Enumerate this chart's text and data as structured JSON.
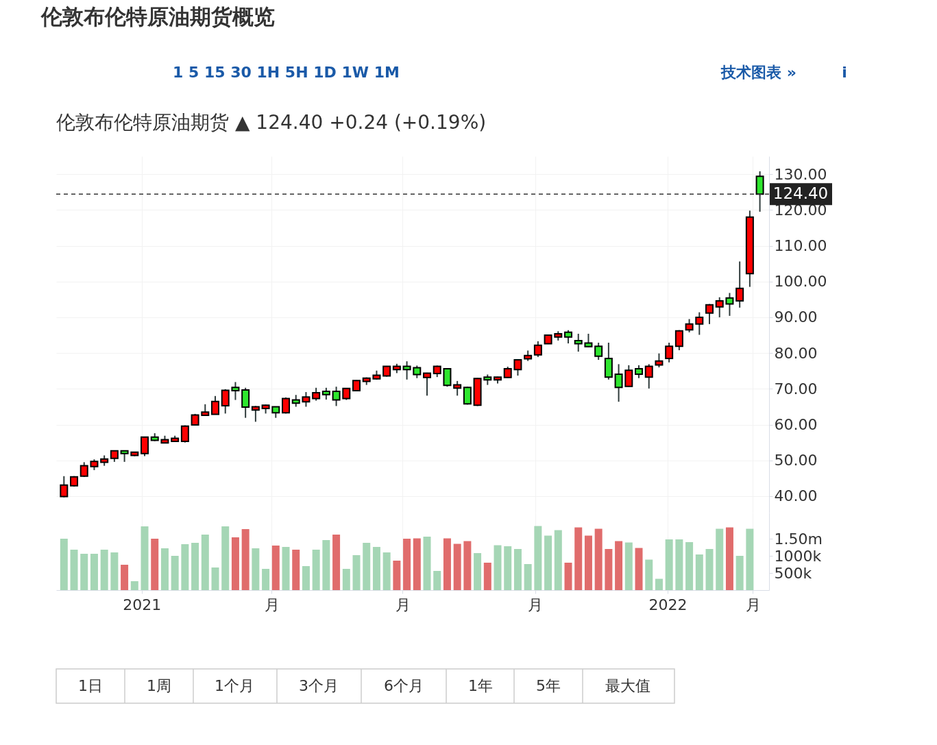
{
  "chart_data": [
    {
      "type": "candlestick",
      "title": "伦敦布伦特原油期货概览",
      "subtitle": "伦敦布伦特原油期货 ▲ 124.40 +0.24 (+0.19%)",
      "annotations": [
        "1 5 15 30 1H 5H 1D 1W 1M",
        "技术图表 »",
        "i"
      ],
      "x": [
        "2020-11-08",
        "2020-11-15",
        "2020-11-22",
        "2020-11-29",
        "2020-12-06",
        "2020-12-13",
        "2020-12-20",
        "2020-12-27",
        "2021-01-03",
        "2021-01-10",
        "2021-01-17",
        "2021-01-24",
        "2021-01-31",
        "2021-02-07",
        "2021-02-14",
        "2021-02-21",
        "2021-02-28",
        "2021-03-07",
        "2021-03-14",
        "2021-03-21",
        "2021-03-28",
        "2021-04-04",
        "2021-04-11",
        "2021-04-18",
        "2021-04-25",
        "2021-05-02",
        "2021-05-09",
        "2021-05-16",
        "2021-05-23",
        "2021-05-30",
        "2021-06-06",
        "2021-06-13",
        "2021-06-20",
        "2021-06-27",
        "2021-07-04",
        "2021-07-11",
        "2021-07-18",
        "2021-07-25",
        "2021-08-01",
        "2021-08-08",
        "2021-08-15",
        "2021-08-22",
        "2021-08-29",
        "2021-09-05",
        "2021-09-12",
        "2021-09-19",
        "2021-09-26",
        "2021-10-03",
        "2021-10-10",
        "2021-10-17",
        "2021-10-24",
        "2021-10-31",
        "2021-11-07",
        "2021-11-14",
        "2021-11-21",
        "2021-11-28",
        "2021-12-05",
        "2021-12-12",
        "2021-12-19",
        "2021-12-26",
        "2022-01-02",
        "2022-01-09",
        "2022-01-16",
        "2022-01-23",
        "2022-01-30",
        "2022-02-06",
        "2022-02-13",
        "2022-02-20",
        "2022-02-27",
        "2022-03-06"
      ],
      "ohlc": [
        [
          39.9,
          45.6,
          39.7,
          43.1
        ],
        [
          42.9,
          45.6,
          42.7,
          45.4
        ],
        [
          45.6,
          49.5,
          45.4,
          48.5
        ],
        [
          48.3,
          50.3,
          47.3,
          49.7
        ],
        [
          49.5,
          51.4,
          48.5,
          50.4
        ],
        [
          50.6,
          52.7,
          49.6,
          52.7
        ],
        [
          52.7,
          52.7,
          49.6,
          51.9
        ],
        [
          51.4,
          52.3,
          51.2,
          52.3
        ],
        [
          51.9,
          56.5,
          51.2,
          56.5
        ],
        [
          56.5,
          57.6,
          55.4,
          55.6
        ],
        [
          54.9,
          56.9,
          54.8,
          55.8
        ],
        [
          55.3,
          56.9,
          55.2,
          56.2
        ],
        [
          55.3,
          59.8,
          55.0,
          59.6
        ],
        [
          59.9,
          63.0,
          59.9,
          62.7
        ],
        [
          62.6,
          65.7,
          62.5,
          63.5
        ],
        [
          62.9,
          68.0,
          62.9,
          66.5
        ],
        [
          65.3,
          69.9,
          63.1,
          69.6
        ],
        [
          70.4,
          71.9,
          66.9,
          69.5
        ],
        [
          69.7,
          70.3,
          61.9,
          64.9
        ],
        [
          64.1,
          65.2,
          60.8,
          65.0
        ],
        [
          64.5,
          65.6,
          63.1,
          65.4
        ],
        [
          65.0,
          65.0,
          61.9,
          63.3
        ],
        [
          63.3,
          67.6,
          63.1,
          67.3
        ],
        [
          66.9,
          68.3,
          65.0,
          66.0
        ],
        [
          66.4,
          69.1,
          65.0,
          67.7
        ],
        [
          67.3,
          70.3,
          66.7,
          68.9
        ],
        [
          69.3,
          70.3,
          67.0,
          68.4
        ],
        [
          69.3,
          70.6,
          65.2,
          66.9
        ],
        [
          67.3,
          70.2,
          66.9,
          70.1
        ],
        [
          69.5,
          72.4,
          69.3,
          72.3
        ],
        [
          72.1,
          73.2,
          71.1,
          73.0
        ],
        [
          72.8,
          75.1,
          72.6,
          73.8
        ],
        [
          73.6,
          76.4,
          73.4,
          76.3
        ],
        [
          75.4,
          77.0,
          74.4,
          76.3
        ],
        [
          76.3,
          77.7,
          72.6,
          75.4
        ],
        [
          75.9,
          76.5,
          73.0,
          74.0
        ],
        [
          73.2,
          74.5,
          68.1,
          74.4
        ],
        [
          74.3,
          76.5,
          73.3,
          76.3
        ],
        [
          75.6,
          75.7,
          70.6,
          71.0
        ],
        [
          70.2,
          72.2,
          68.1,
          71.1
        ],
        [
          70.4,
          70.6,
          65.6,
          65.8
        ],
        [
          65.4,
          73.0,
          65.2,
          72.9
        ],
        [
          73.3,
          74.0,
          71.1,
          72.5
        ],
        [
          72.5,
          73.4,
          71.5,
          73.3
        ],
        [
          73.2,
          76.2,
          73.1,
          75.6
        ],
        [
          75.4,
          78.2,
          73.7,
          78.1
        ],
        [
          78.4,
          80.7,
          77.8,
          79.3
        ],
        [
          79.5,
          83.3,
          78.9,
          82.2
        ],
        [
          82.6,
          85.1,
          82.5,
          85.0
        ],
        [
          84.5,
          86.1,
          83.5,
          85.4
        ],
        [
          85.8,
          86.4,
          82.7,
          84.5
        ],
        [
          83.5,
          85.4,
          80.4,
          82.6
        ],
        [
          82.8,
          85.4,
          81.7,
          81.8
        ],
        [
          81.9,
          82.9,
          78.1,
          79.1
        ],
        [
          78.5,
          82.9,
          72.6,
          73.3
        ],
        [
          74.1,
          76.9,
          66.4,
          70.4
        ],
        [
          70.7,
          76.6,
          70.6,
          75.2
        ],
        [
          75.6,
          76.6,
          73.0,
          74.1
        ],
        [
          73.3,
          76.9,
          70.1,
          76.3
        ],
        [
          76.7,
          79.9,
          76.0,
          77.8
        ],
        [
          78.5,
          82.9,
          77.4,
          81.9
        ],
        [
          81.9,
          86.4,
          80.8,
          86.2
        ],
        [
          86.5,
          89.5,
          85.8,
          88.1
        ],
        [
          88.1,
          91.4,
          85.1,
          90.0
        ],
        [
          91.2,
          93.7,
          88.1,
          93.5
        ],
        [
          92.9,
          95.6,
          90.0,
          94.6
        ],
        [
          95.4,
          96.8,
          90.4,
          93.7
        ],
        [
          94.6,
          105.6,
          92.7,
          98.1
        ],
        [
          102.2,
          119.8,
          98.5,
          118.0
        ],
        [
          129.4,
          130.8,
          119.5,
          124.4
        ]
      ],
      "colors": [
        "#ff0000",
        "#ff0000",
        "#ff0000",
        "#ff0000",
        "#ff0000",
        "#ff0000",
        "#2ee62e",
        "#ff0000",
        "#ff0000",
        "#2ee62e",
        "#ff0000",
        "#ff0000",
        "#ff0000",
        "#ff0000",
        "#ff0000",
        "#ff0000",
        "#ff0000",
        "#2ee62e",
        "#2ee62e",
        "#ff0000",
        "#ff0000",
        "#2ee62e",
        "#ff0000",
        "#2ee62e",
        "#ff0000",
        "#ff0000",
        "#2ee62e",
        "#2ee62e",
        "#ff0000",
        "#ff0000",
        "#ff0000",
        "#ff0000",
        "#ff0000",
        "#ff0000",
        "#2ee62e",
        "#2ee62e",
        "#ff0000",
        "#ff0000",
        "#2ee62e",
        "#ff0000",
        "#2ee62e",
        "#ff0000",
        "#2ee62e",
        "#ff0000",
        "#ff0000",
        "#ff0000",
        "#ff0000",
        "#ff0000",
        "#ff0000",
        "#ff0000",
        "#2ee62e",
        "#2ee62e",
        "#2ee62e",
        "#2ee62e",
        "#2ee62e",
        "#2ee62e",
        "#ff0000",
        "#2ee62e",
        "#ff0000",
        "#ff0000",
        "#ff0000",
        "#ff0000",
        "#ff0000",
        "#ff0000",
        "#ff0000",
        "#ff0000",
        "#2ee62e",
        "#ff0000",
        "#ff0000",
        "#2ee62e"
      ],
      "xlim": [
        "2020-11-05",
        "2022-03-10"
      ],
      "xticks": [
        {
          "value": "2021-01-01",
          "label": null
        },
        {
          "value": "2021-04-01",
          "label": null
        },
        {
          "value": "2021-07-01",
          "label": null
        },
        {
          "value": "2021-10-01",
          "label": null
        },
        {
          "value": "2022-01-01",
          "label": null
        },
        {
          "value": "2022-03-01",
          "label": null
        }
      ],
      "ylim": [
        35.4,
        135
      ],
      "yticks": [
        {
          "value": 40,
          "label": "40.00"
        },
        {
          "value": 50,
          "label": "50.00"
        },
        {
          "value": 60,
          "label": "60.00"
        },
        {
          "value": 70,
          "label": "70.00"
        },
        {
          "value": 80,
          "label": "80.00"
        },
        {
          "value": 90,
          "label": "90.00"
        },
        {
          "value": 100,
          "label": "100.00"
        },
        {
          "value": 110,
          "label": "110.00"
        },
        {
          "value": 120,
          "label": "120.00"
        },
        {
          "value": 130,
          "label": "130.00"
        }
      ],
      "ref_lines": [
        {
          "axis": "y",
          "value": 124.4,
          "label": "124.40",
          "color": "#333333",
          "line_style": "dashed"
        }
      ],
      "grid": true,
      "tick_labels": "y"
    },
    {
      "type": "bar",
      "annotations": [
        "1日",
        "1周",
        "1个月",
        "3个月",
        "6个月",
        "1年",
        "5年",
        "最大值"
      ],
      "x": [
        "2020-11-08",
        "2020-11-15",
        "2020-11-22",
        "2020-11-29",
        "2020-12-06",
        "2020-12-13",
        "2020-12-20",
        "2020-12-27",
        "2021-01-03",
        "2021-01-10",
        "2021-01-17",
        "2021-01-24",
        "2021-01-31",
        "2021-02-07",
        "2021-02-14",
        "2021-02-21",
        "2021-02-28",
        "2021-03-07",
        "2021-03-14",
        "2021-03-21",
        "2021-03-28",
        "2021-04-04",
        "2021-04-11",
        "2021-04-18",
        "2021-04-25",
        "2021-05-02",
        "2021-05-09",
        "2021-05-16",
        "2021-05-23",
        "2021-05-30",
        "2021-06-06",
        "2021-06-13",
        "2021-06-20",
        "2021-06-27",
        "2021-07-04",
        "2021-07-11",
        "2021-07-18",
        "2021-07-25",
        "2021-08-01",
        "2021-08-08",
        "2021-08-15",
        "2021-08-22",
        "2021-08-29",
        "2021-09-05",
        "2021-09-12",
        "2021-09-19",
        "2021-09-26",
        "2021-10-03",
        "2021-10-10",
        "2021-10-17",
        "2021-10-24",
        "2021-10-31",
        "2021-11-07",
        "2021-11-14",
        "2021-11-21",
        "2021-11-28",
        "2021-12-05",
        "2021-12-12",
        "2021-12-19",
        "2021-12-26",
        "2022-01-02",
        "2022-01-09",
        "2022-01-16",
        "2022-01-23",
        "2022-01-30",
        "2022-02-06",
        "2022-02-13",
        "2022-02-20",
        "2022-02-27"
      ],
      "values": [
        1500000,
        1180000,
        1060000,
        1060000,
        1180000,
        1100000,
        740000,
        260000,
        1860000,
        1500000,
        1220000,
        1000000,
        1340000,
        1380000,
        1620000,
        660000,
        1860000,
        1540000,
        1780000,
        1220000,
        620000,
        1300000,
        1260000,
        1180000,
        700000,
        1180000,
        1460000,
        1620000,
        620000,
        1020000,
        1380000,
        1260000,
        1100000,
        860000,
        1500000,
        1510000,
        1560000,
        560000,
        1510000,
        1350000,
        1430000,
        1080000,
        800000,
        1310000,
        1280000,
        1200000,
        760000,
        1870000,
        1590000,
        1750000,
        800000,
        1830000,
        1590000,
        1790000,
        1200000,
        1430000,
        1390000,
        1230000,
        890000,
        330000,
        1480000,
        1480000,
        1400000,
        1040000,
        1200000,
        1790000,
        1830000,
        1000000,
        1790000
      ],
      "colors": [
        "#a5d6b5",
        "#a5d6b5",
        "#a5d6b5",
        "#a5d6b5",
        "#a5d6b5",
        "#a5d6b5",
        "#e06c6c",
        "#a5d6b5",
        "#a5d6b5",
        "#e06c6c",
        "#a5d6b5",
        "#a5d6b5",
        "#a5d6b5",
        "#a5d6b5",
        "#a5d6b5",
        "#a5d6b5",
        "#a5d6b5",
        "#e06c6c",
        "#e06c6c",
        "#a5d6b5",
        "#a5d6b5",
        "#e06c6c",
        "#a5d6b5",
        "#e06c6c",
        "#a5d6b5",
        "#a5d6b5",
        "#a5d6b5",
        "#e06c6c",
        "#a5d6b5",
        "#a5d6b5",
        "#a5d6b5",
        "#a5d6b5",
        "#a5d6b5",
        "#e06c6c",
        "#e06c6c",
        "#e06c6c",
        "#a5d6b5",
        "#a5d6b5",
        "#e06c6c",
        "#e06c6c",
        "#e06c6c",
        "#a5d6b5",
        "#e06c6c",
        "#a5d6b5",
        "#a5d6b5",
        "#a5d6b5",
        "#a5d6b5",
        "#a5d6b5",
        "#a5d6b5",
        "#a5d6b5",
        "#e06c6c",
        "#e06c6c",
        "#e06c6c",
        "#e06c6c",
        "#e06c6c",
        "#e06c6c",
        "#a5d6b5",
        "#e06c6c",
        "#a5d6b5",
        "#a5d6b5",
        "#a5d6b5",
        "#a5d6b5",
        "#a5d6b5",
        "#a5d6b5",
        "#a5d6b5",
        "#a5d6b5",
        "#e06c6c",
        "#a5d6b5",
        "#a5d6b5"
      ],
      "xlim": [
        "2020-11-05",
        "2022-03-10"
      ],
      "xticks": [
        {
          "value": "2021-01-01",
          "label": "2021"
        },
        {
          "value": "2021-04-01",
          "label": "月"
        },
        {
          "value": "2021-07-01",
          "label": "月"
        },
        {
          "value": "2021-10-01",
          "label": "月"
        },
        {
          "value": "2022-01-01",
          "label": "2022"
        },
        {
          "value": "2022-03-01",
          "label": "月"
        }
      ],
      "ylim": [
        0,
        2260000
      ],
      "yticks": [
        {
          "value": 500000,
          "label": "500k"
        },
        {
          "value": 1000000,
          "label": "1000k"
        },
        {
          "value": 1500000,
          "label": "1.50m"
        }
      ],
      "grid": "x"
    }
  ]
}
